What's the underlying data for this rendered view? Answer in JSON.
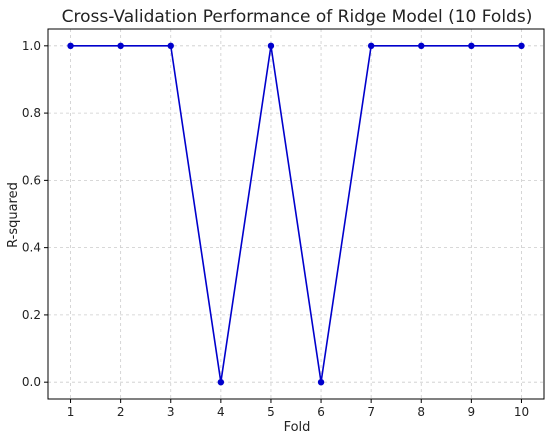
{
  "chart_data": {
    "type": "line",
    "title": "Cross-Validation Performance of Ridge Model (10 Folds)",
    "xlabel": "Fold",
    "ylabel": "R-squared",
    "x": [
      1,
      2,
      3,
      4,
      5,
      6,
      7,
      8,
      9,
      10
    ],
    "series": [
      {
        "values": [
          1.0,
          1.0,
          1.0,
          0.0,
          1.0,
          0.0,
          1.0,
          1.0,
          1.0,
          1.0
        ],
        "color": "#0000cc",
        "marker": "circle"
      }
    ],
    "xticks": [
      "1",
      "2",
      "3",
      "4",
      "5",
      "6",
      "7",
      "8",
      "9",
      "10"
    ],
    "yticks": [
      "0.0",
      "0.2",
      "0.4",
      "0.6",
      "0.8",
      "1.0"
    ],
    "xlim": [
      0.55,
      10.45
    ],
    "ylim": [
      -0.05,
      1.05
    ],
    "grid": true
  }
}
